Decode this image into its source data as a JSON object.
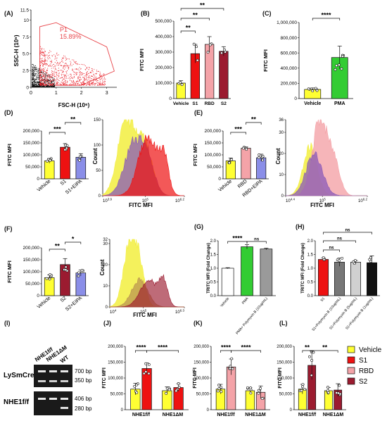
{
  "legend": {
    "items": [
      {
        "label": "Vehicle",
        "color": "#ffff33"
      },
      {
        "label": "S1",
        "color": "#ee1111"
      },
      {
        "label": "RBD",
        "color": "#f4a3a8"
      },
      {
        "label": "S2",
        "color": "#9b1b30"
      }
    ]
  },
  "colors": {
    "vehicle": "#ffff33",
    "s1": "#ee1111",
    "rbd": "#f4a3a8",
    "s2": "#9b1b30",
    "pma": "#33cc33",
    "eipa": "#8a8ee8",
    "purple_hist": "#8a5ab8",
    "yellow_hist": "#f2ee40",
    "gate": "#e8454a",
    "gray_bar": "#9a9a9a",
    "light_gray": "#d0d0d0",
    "black": "#111111"
  },
  "chart_data": [
    {
      "panel": "(A)",
      "type": "scatter",
      "xlabel": "FSC-H (10⁶)",
      "ylabel": "SSC-H (10⁶)",
      "xticks": [
        "0",
        "1",
        "2",
        "3"
      ],
      "yticks": [
        "0",
        "2.5",
        "5.0",
        "7.5",
        "10",
        "11.5"
      ],
      "xlim": [
        0,
        3.4
      ],
      "ylim": [
        0,
        11.5
      ],
      "gate_label": "P1",
      "gate_percent": "15.89%"
    },
    {
      "panel": "(B)",
      "type": "bar",
      "ylabel": "FITC MFI",
      "categories": [
        "Vehicle",
        "S1",
        "RBD",
        "S2"
      ],
      "values": [
        100000,
        290000,
        350000,
        305000
      ],
      "errors": [
        15000,
        60000,
        50000,
        30000
      ],
      "ylim": [
        0,
        500000
      ],
      "yticks": [
        "0",
        "100,000",
        "200,000",
        "300,000",
        "400,000",
        "500,000"
      ],
      "sig": [
        {
          "text": "**",
          "from": 0,
          "to": 1
        },
        {
          "text": "**",
          "from": 0,
          "to": 2
        },
        {
          "text": "**",
          "from": 0,
          "to": 3
        }
      ]
    },
    {
      "panel": "(C)",
      "type": "bar",
      "ylabel": "FITC MFI",
      "categories": [
        "Vehicle",
        "PMA"
      ],
      "values": [
        120000,
        540000
      ],
      "errors": [
        20000,
        150000
      ],
      "ylim": [
        0,
        1000000
      ],
      "yticks": [
        "0",
        "200,000",
        "400,000",
        "600,000",
        "800,000",
        "1,000,000"
      ],
      "sig": [
        {
          "text": "****",
          "from": 0,
          "to": 1
        }
      ]
    },
    {
      "panel": "(D)",
      "type": "bar",
      "ylabel": "FITC MFI",
      "categories": [
        "Vehicle",
        "S1",
        "S1+EIPA"
      ],
      "values": [
        75000,
        132000,
        90000
      ],
      "errors": [
        10000,
        15000,
        15000
      ],
      "ylim": [
        0,
        200000
      ],
      "yticks": [
        "0",
        "50,000",
        "100,000",
        "150,000",
        "200,000"
      ],
      "sig": [
        {
          "text": "***",
          "from": 0,
          "to": 1
        },
        {
          "text": "**",
          "from": 1,
          "to": 2
        }
      ]
    },
    {
      "panel": "(D-hist)",
      "type": "area",
      "xlabel": "FITC MFI",
      "ylabel": "Count",
      "xticks": [
        "10^3.9",
        "10^5",
        "10^6.2"
      ],
      "ylim": [
        0,
        150
      ],
      "yticks": [
        "0",
        "50",
        "100",
        "150"
      ]
    },
    {
      "panel": "(E)",
      "type": "bar",
      "ylabel": "FITC MFI",
      "categories": [
        "Vehicle",
        "RBD",
        "RBD+EIPA"
      ],
      "values": [
        75000,
        128000,
        88000
      ],
      "errors": [
        12000,
        5000,
        15000
      ],
      "ylim": [
        0,
        200000
      ],
      "yticks": [
        "0",
        "50,000",
        "100,000",
        "150,000",
        "200,000"
      ],
      "sig": [
        {
          "text": "***",
          "from": 0,
          "to": 1
        },
        {
          "text": "**",
          "from": 1,
          "to": 2
        }
      ]
    },
    {
      "panel": "(E-hist)",
      "type": "area",
      "xlabel": "FITC MFI",
      "ylabel": "Count",
      "xticks": [
        "10^4.4",
        "10^5",
        "10^6.2"
      ],
      "ylim": [
        0,
        36
      ],
      "yticks": [
        "0",
        "10",
        "20",
        "30",
        "36"
      ]
    },
    {
      "panel": "(F)",
      "type": "bar",
      "ylabel": "FITC MFI",
      "categories": [
        "Vehicle",
        "S2",
        "S2+EIPA"
      ],
      "values": [
        75000,
        130000,
        95000
      ],
      "errors": [
        12000,
        25000,
        12000
      ],
      "ylim": [
        0,
        200000
      ],
      "yticks": [
        "0",
        "50,000",
        "100,000",
        "150,000",
        "200,000"
      ],
      "sig": [
        {
          "text": "**",
          "from": 0,
          "to": 1
        },
        {
          "text": "*",
          "from": 1,
          "to": 2
        }
      ]
    },
    {
      "panel": "(F-hist)",
      "type": "area",
      "xlabel": "FITC MFI",
      "ylabel": "Count",
      "xticks": [
        "10^4",
        "10^5",
        "10^6.3"
      ],
      "ylim": [
        0,
        32
      ],
      "yticks": [
        "0",
        "10",
        "20",
        "30",
        "32"
      ]
    },
    {
      "panel": "(G)",
      "type": "bar",
      "ylabel": "TRITC MFI (Fold Change)",
      "categories": [
        "Vehicle",
        "PMA",
        "PMA+ Polymyxin B (10ug/mL)"
      ],
      "values": [
        1.0,
        1.78,
        1.7
      ],
      "errors": [
        0.02,
        0.08,
        0.03
      ],
      "ylim": [
        0,
        2.0
      ],
      "yticks": [
        "0.0",
        "0.5",
        "1.0",
        "1.5",
        "2.0"
      ],
      "sig": [
        {
          "text": "****",
          "from": 0,
          "to": 1
        },
        {
          "text": "ns",
          "from": 1,
          "to": 2
        }
      ]
    },
    {
      "panel": "(H)",
      "type": "bar",
      "ylabel": "TRITC MFI (Fold Change)",
      "categories": [
        "S1",
        "S1+Polymyxin B (10ug/mL)",
        "S1+Polymyxin B (5ug/mL)",
        "S1+Polymyxin B (1ug/mL)"
      ],
      "values": [
        1.32,
        1.22,
        1.22,
        1.2
      ],
      "errors": [
        0.06,
        0.15,
        0.06,
        0.25
      ],
      "ylim": [
        0,
        2.0
      ],
      "yticks": [
        "0.0",
        "0.5",
        "1.0",
        "1.5",
        "2.0"
      ],
      "sig": [
        {
          "text": "ns",
          "from": 0,
          "to": 1
        },
        {
          "text": "ns",
          "from": 0,
          "to": 2
        },
        {
          "text": "ns",
          "from": 0,
          "to": 3
        }
      ]
    },
    {
      "panel": "(J)",
      "type": "bar",
      "ylabel": "FITC MFI",
      "groups": [
        "NHE1f/f",
        "NHE1ΔM"
      ],
      "values": [
        [
          65000,
          130000
        ],
        [
          60000,
          70000
        ]
      ],
      "errors": [
        [
          18000,
          18000
        ],
        [
          12000,
          12000
        ]
      ],
      "ylim": [
        0,
        200000
      ],
      "yticks": [
        "0",
        "50,000",
        "100,000",
        "150,000",
        "200,000"
      ],
      "sig": [
        "****",
        "****"
      ]
    },
    {
      "panel": "(K)",
      "type": "bar",
      "ylabel": "FITC MFI",
      "groups": [
        "NHE1f/f",
        "NHE1ΔM"
      ],
      "values": [
        [
          65000,
          135000
        ],
        [
          60000,
          55000
        ]
      ],
      "errors": [
        [
          15000,
          25000
        ],
        [
          10000,
          20000
        ]
      ],
      "ylim": [
        0,
        200000
      ],
      "yticks": [
        "0",
        "50,000",
        "100,000",
        "150,000",
        "200,000"
      ],
      "sig": [
        "****",
        "****"
      ]
    },
    {
      "panel": "(L)",
      "type": "bar",
      "ylabel": "FITC MFI",
      "groups": [
        "NHE1f/f",
        "NHE1ΔM"
      ],
      "values": [
        [
          65000,
          140000
        ],
        [
          60000,
          62000
        ]
      ],
      "errors": [
        [
          15000,
          45000
        ],
        [
          10000,
          20000
        ]
      ],
      "ylim": [
        0,
        200000
      ],
      "yticks": [
        "0",
        "50,000",
        "100,000",
        "150,000",
        "200,000"
      ],
      "sig": [
        "**",
        "**"
      ]
    }
  ],
  "gel": {
    "panel": "(I)",
    "lane_labels": [
      "NHE1f/f",
      "NHE1ΔM",
      "WT"
    ],
    "rows": [
      {
        "label": "LySmCre",
        "bands": [
          "700 bp",
          "350 bp"
        ]
      },
      {
        "label": "NHE1f/f",
        "bands": [
          "406 bp",
          "280 bp"
        ]
      }
    ]
  }
}
